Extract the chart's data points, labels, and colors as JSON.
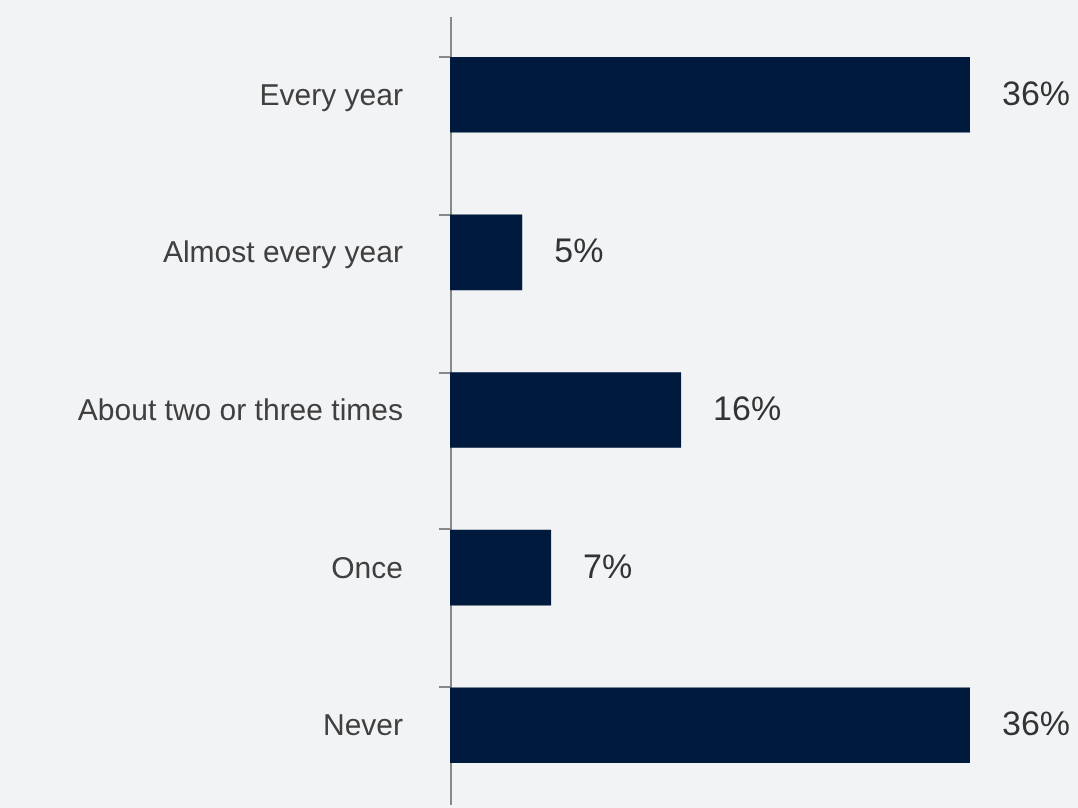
{
  "chart_data": {
    "type": "bar",
    "orientation": "horizontal",
    "categories": [
      "Every year",
      "Almost every year",
      "About two or three times",
      "Once",
      "Never"
    ],
    "values": [
      36,
      5,
      16,
      7,
      36
    ],
    "value_labels": [
      "36%",
      "5%",
      "16%",
      "7%",
      "36%"
    ],
    "color": "#001a3d"
  }
}
